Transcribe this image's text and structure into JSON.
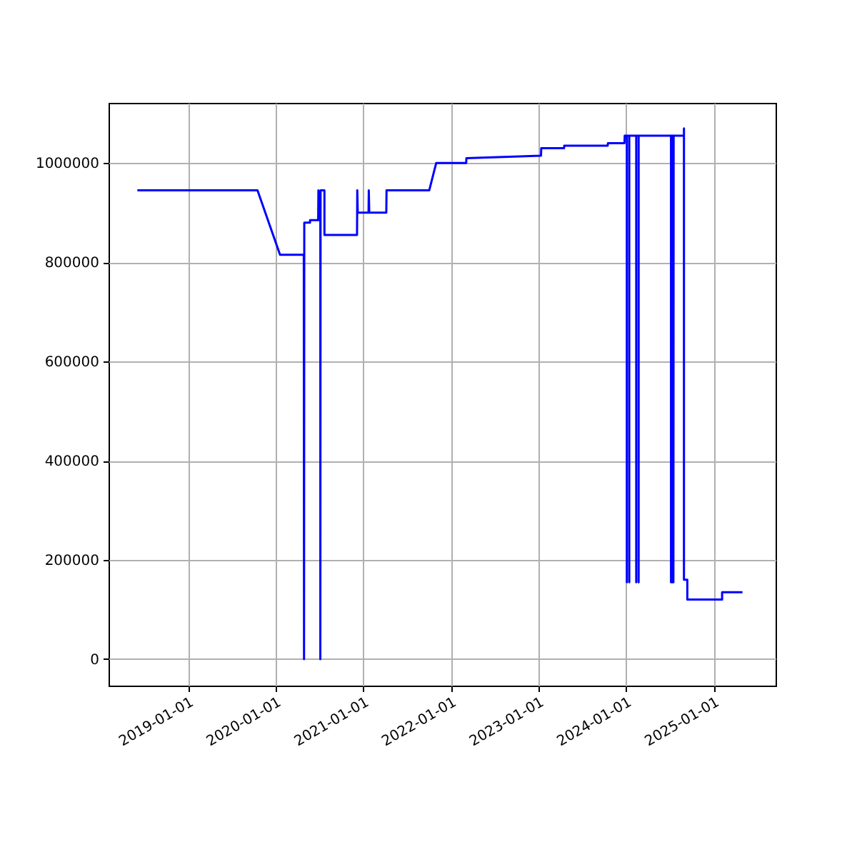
{
  "chart_data": {
    "type": "line",
    "color": "#0000ff",
    "x": [
      "2018-06-04",
      "2019-10-18",
      "2020-01-20",
      "2020-04-28",
      "2020-04-29",
      "2020-04-30",
      "2020-05-24",
      "2020-05-24",
      "2020-06-27",
      "2020-06-28",
      "2020-06-29",
      "2020-07-06",
      "2020-07-06",
      "2020-07-07",
      "2020-07-23",
      "2020-07-23",
      "2020-12-06",
      "2020-12-07",
      "2020-12-09",
      "2021-01-23",
      "2021-01-24",
      "2021-01-26",
      "2021-04-07",
      "2021-04-08",
      "2021-10-03",
      "2021-11-01",
      "2022-03-06",
      "2022-03-07",
      "2023-01-12",
      "2023-01-13",
      "2023-04-18",
      "2023-04-19",
      "2023-10-17",
      "2023-10-18",
      "2023-12-26",
      "2023-12-27",
      "2024-01-05",
      "2024-01-05",
      "2024-01-05",
      "2024-01-15",
      "2024-01-15",
      "2024-01-15",
      "2024-02-13",
      "2024-02-13",
      "2024-02-13",
      "2024-02-23",
      "2024-02-23",
      "2024-02-23",
      "2024-04-07",
      "2024-04-08",
      "2024-07-07",
      "2024-07-07",
      "2024-07-08",
      "2024-07-10",
      "2024-07-10",
      "2024-07-11",
      "2024-07-13",
      "2024-07-13",
      "2024-07-14",
      "2024-07-17",
      "2024-07-17",
      "2024-07-18",
      "2024-08-30",
      "2024-08-30",
      "2024-08-30",
      "2024-09-13",
      "2024-09-13",
      "2025-02-05",
      "2025-02-05",
      "2025-05-01"
    ],
    "values": [
      945000,
      945000,
      815000,
      815000,
      0,
      880000,
      880000,
      885000,
      885000,
      945000,
      885000,
      885000,
      0,
      945000,
      945000,
      855000,
      855000,
      945000,
      900000,
      900000,
      945000,
      900000,
      900000,
      945000,
      945000,
      1000000,
      1000000,
      1010000,
      1015000,
      1030000,
      1030000,
      1035000,
      1035000,
      1040000,
      1040000,
      1055000,
      1055000,
      155000,
      1055000,
      1055000,
      155000,
      1055000,
      1055000,
      155000,
      1055000,
      1055000,
      155000,
      1055000,
      1055000,
      1055000,
      1055000,
      155000,
      1055000,
      1055000,
      155000,
      1055000,
      1055000,
      155000,
      1055000,
      1055000,
      155000,
      1055000,
      1055000,
      1070000,
      160000,
      160000,
      120000,
      120000,
      135000,
      135000
    ],
    "xlim": [
      "2018-02-04",
      "2025-09-16"
    ],
    "xticks": [
      "2019-01-01",
      "2020-01-01",
      "2021-01-01",
      "2022-01-01",
      "2023-01-01",
      "2024-01-01",
      "2025-01-01"
    ],
    "ylim": [
      -53400,
      1121400
    ],
    "yticks": [
      0,
      200000,
      400000,
      600000,
      800000,
      1000000
    ],
    "grid": true
  }
}
